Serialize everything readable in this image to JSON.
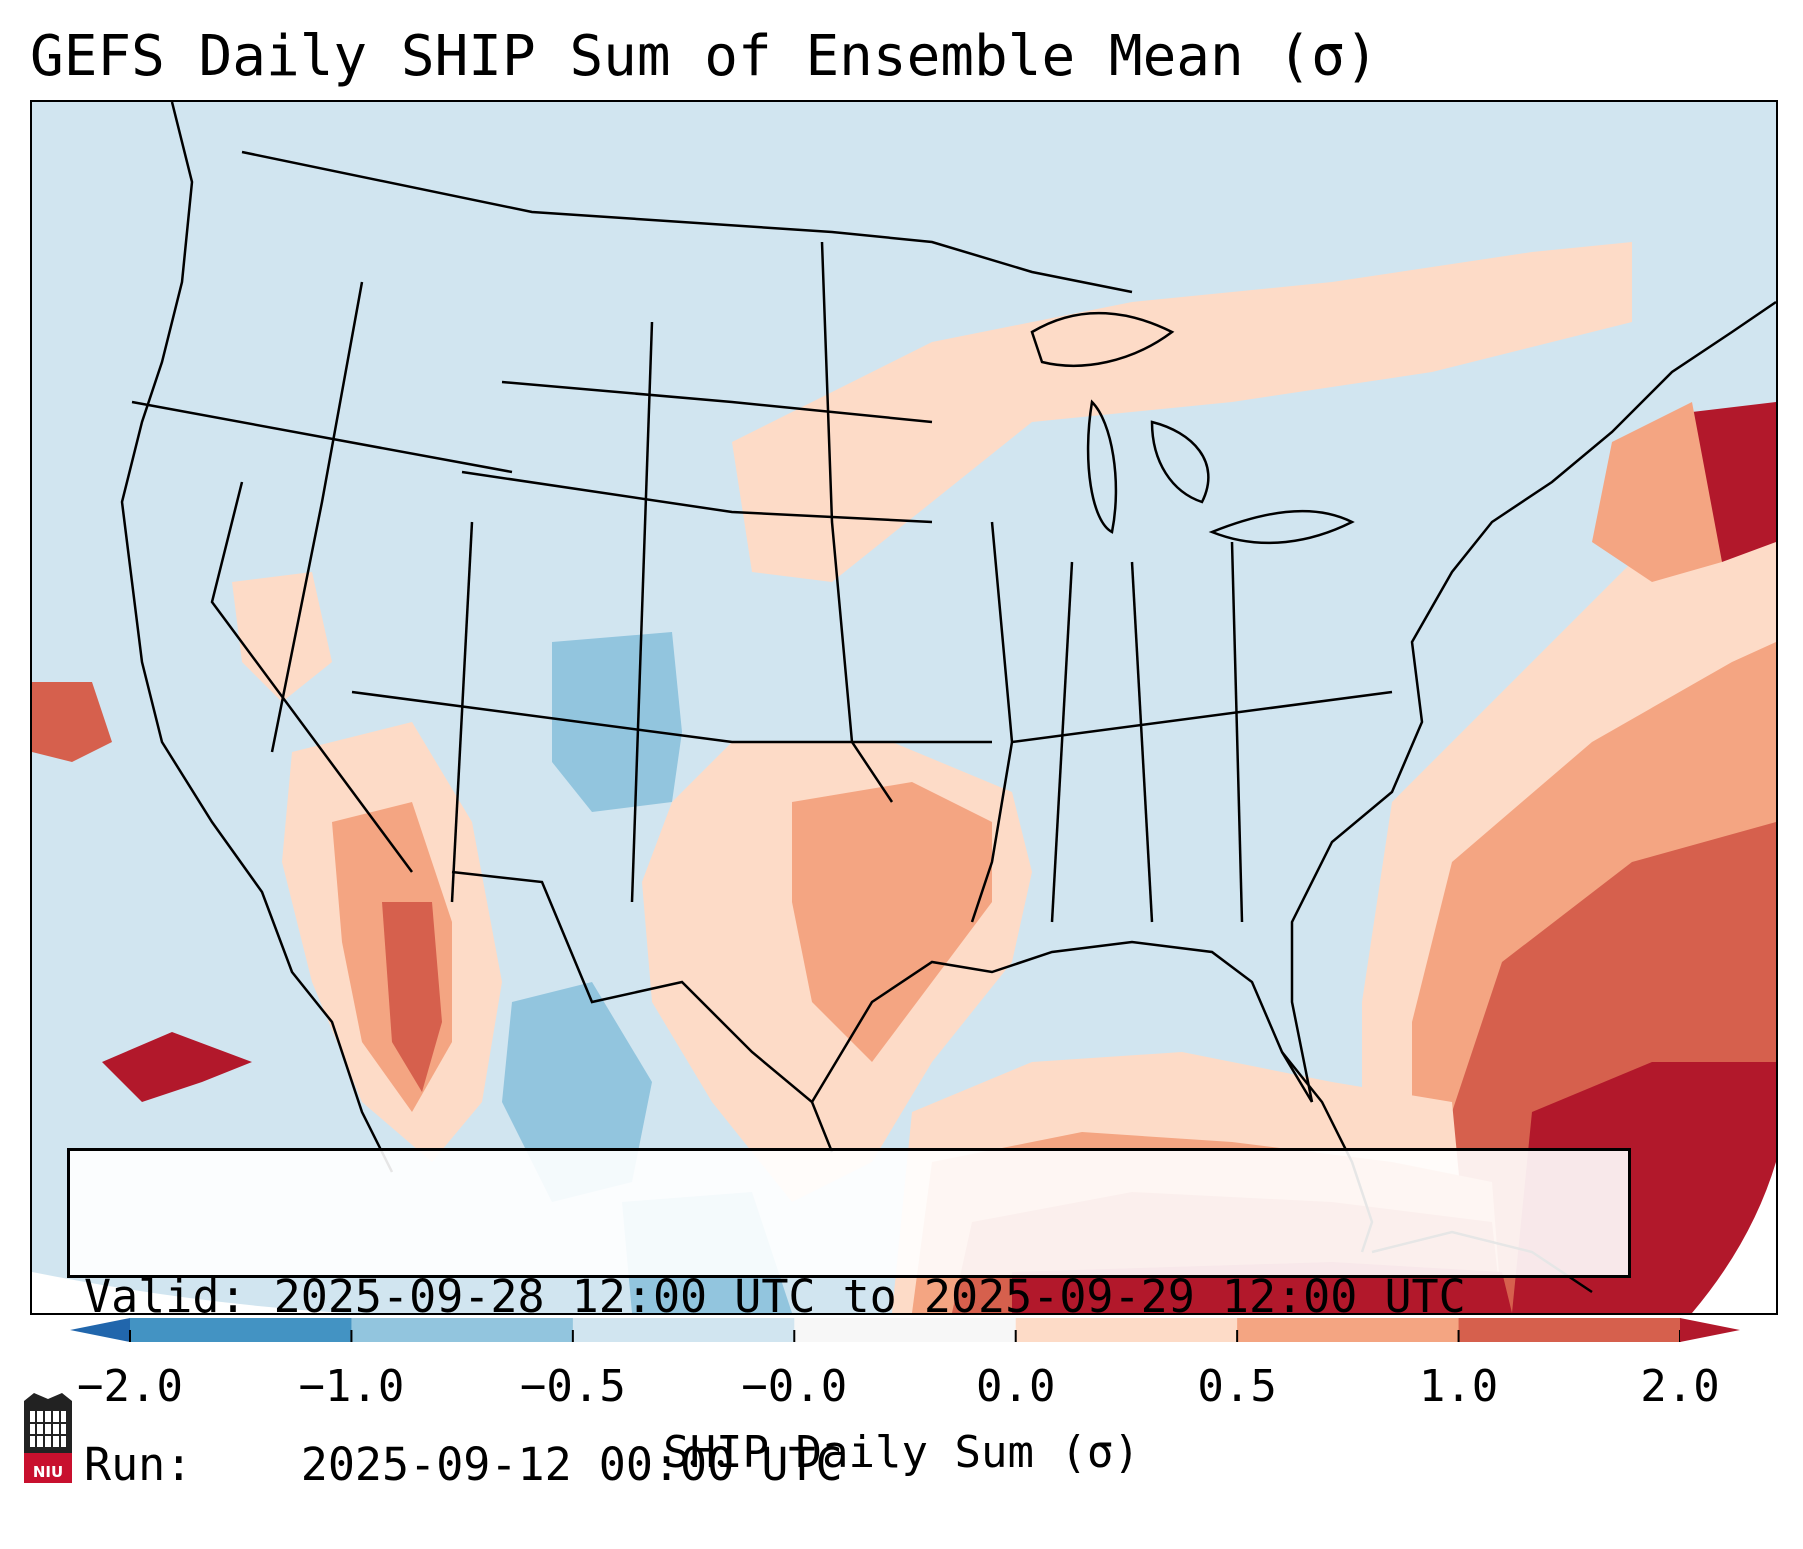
{
  "title": "GEFS Daily SHIP Sum of Ensemble Mean (σ)",
  "info_box": {
    "valid_label": "Valid:",
    "valid_value": "2025-09-28 12:00 UTC to 2025-09-29 12:00 UTC",
    "run_label": "Run:",
    "run_value": "2025-09-12 00:00 UTC"
  },
  "colorbar": {
    "label": "SHIP Daily Sum (σ)",
    "ticks": [
      "−2.0",
      "−1.0",
      "−0.5",
      "−0.0",
      "0.0",
      "0.5",
      "1.0",
      "2.0"
    ],
    "colors": [
      "#4393c3",
      "#92c5de",
      "#d1e5f0",
      "#f7f7f7",
      "#fddbc7",
      "#f4a582",
      "#d6604d",
      "#b2182b"
    ],
    "extend_low_color": "#2166ac",
    "extend_high_color": "#b2182b"
  },
  "logo": {
    "name": "NIU",
    "text": "NIU",
    "color": "#c8102e"
  }
}
